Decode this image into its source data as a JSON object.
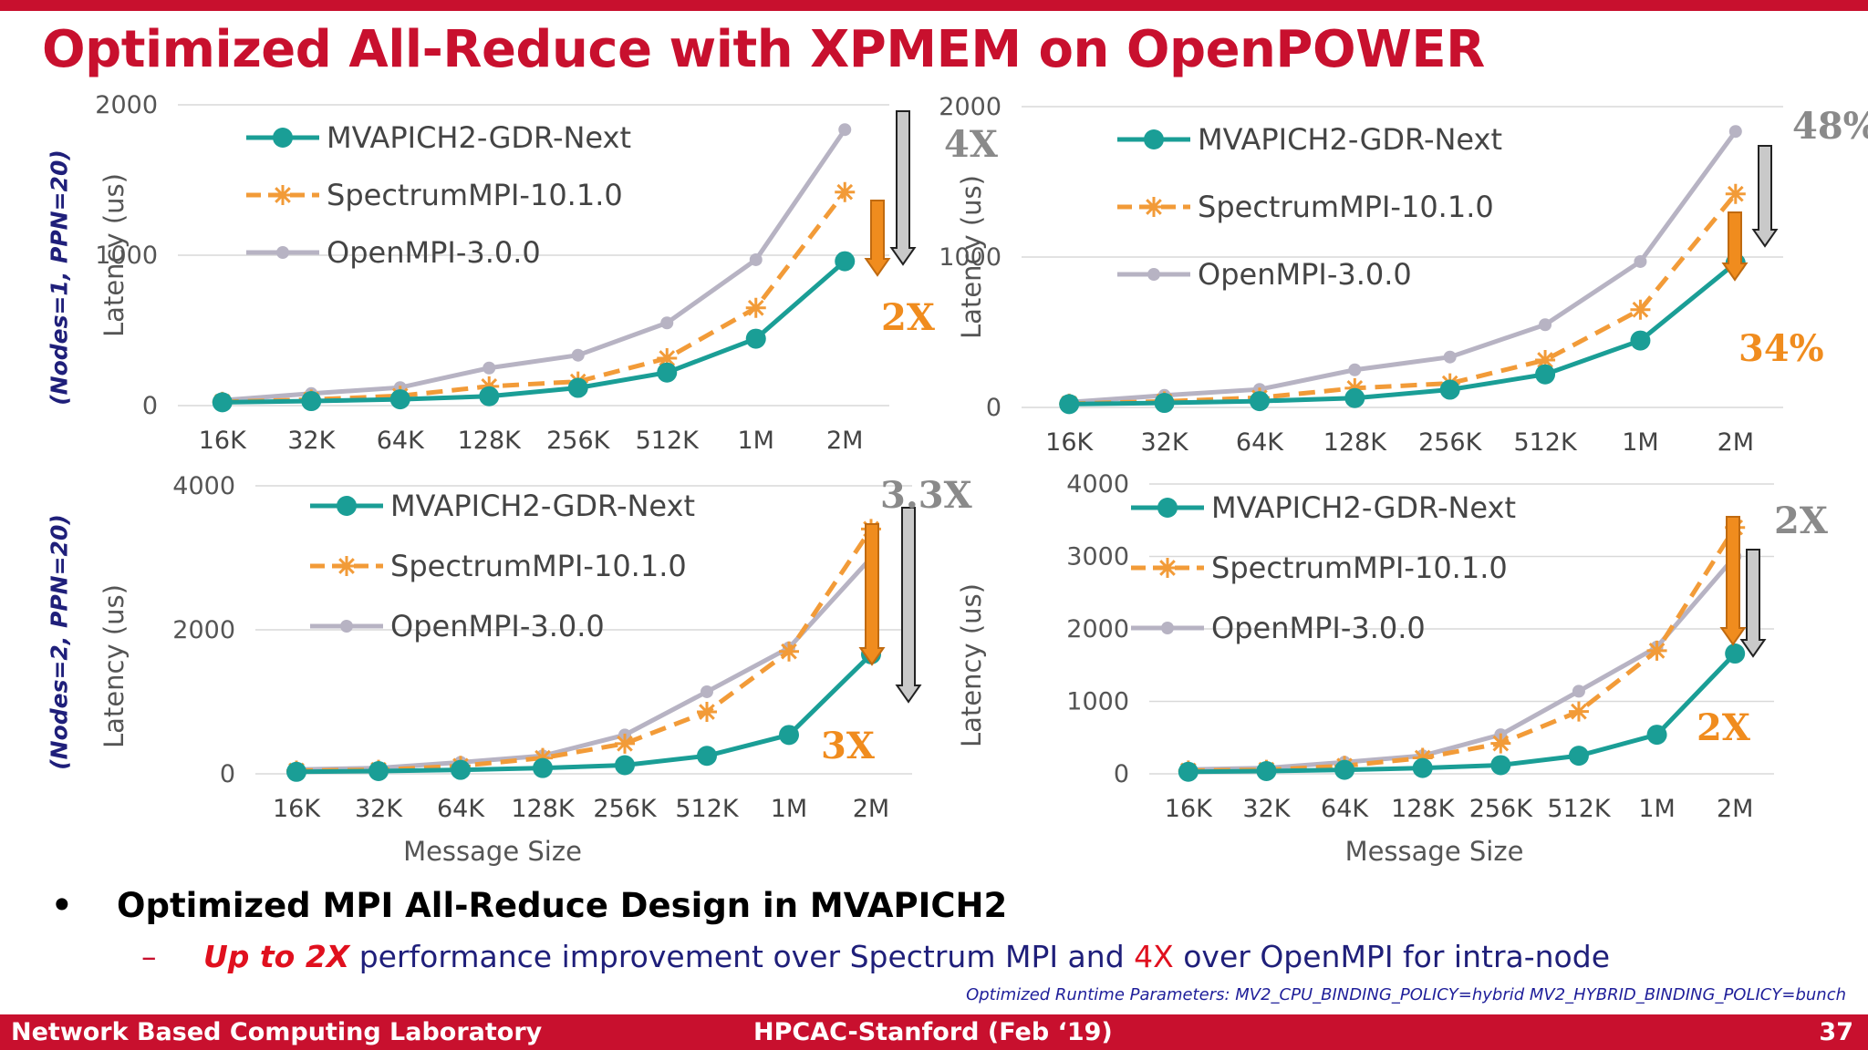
{
  "slide": {
    "title": "Optimized All-Reduce with XPMEM on OpenPOWER",
    "row_labels": [
      "(Nodes=1, PPN=20)",
      "(Nodes=2, PPN=20)"
    ],
    "bullet_main": "Optimized MPI All-Reduce Design in MVAPICH2",
    "bullet_sub_highlight": "Up to 2X",
    "bullet_sub_mid": " performance improvement over Spectrum MPI and ",
    "bullet_sub_highlight2": "4X",
    "bullet_sub_end": " over OpenMPI for intra-node",
    "runtime_params": "Optimized Runtime Parameters: MV2_CPU_BINDING_POLICY=hybrid MV2_HYBRID_BINDING_POLICY=bunch",
    "footer_left": "Network Based Computing Laboratory",
    "footer_center": "HPCAC-Stanford (Feb ‘19)",
    "footer_right": "37"
  },
  "colors": {
    "accent": "#c8102e",
    "mvapich": "#1a9e96",
    "spectrum": "#f29b38",
    "openmpi": "#b7b3c3",
    "annot_orange": "#f08c1e",
    "annot_gray": "#8a8a8a"
  },
  "chart_data": [
    {
      "type": "line",
      "xlabel": "",
      "ylabel": "Latency (us)",
      "ylim": [
        0,
        2000
      ],
      "yticks": [
        0,
        1000,
        2000
      ],
      "categories": [
        "16K",
        "32K",
        "64K",
        "128K",
        "256K",
        "512K",
        "1M",
        "2M"
      ],
      "series": [
        {
          "name": "MVAPICH2-GDR-Next",
          "values": [
            22,
            30,
            42,
            62,
            118,
            220,
            445,
            960
          ]
        },
        {
          "name": "SpectrumMPI-10.1.0",
          "values": [
            25,
            40,
            65,
            128,
            160,
            315,
            650,
            1420
          ]
        },
        {
          "name": "OpenMPI-3.0.0",
          "values": [
            35,
            80,
            120,
            250,
            335,
            550,
            970,
            1835
          ]
        }
      ],
      "legend": "top-left",
      "annotations": {
        "gray": "4X",
        "orange": "2X"
      }
    },
    {
      "type": "line",
      "xlabel": "",
      "ylabel": "Latency (us)",
      "ylim": [
        0,
        2000
      ],
      "yticks": [
        0,
        1000,
        2000
      ],
      "categories": [
        "16K",
        "32K",
        "64K",
        "128K",
        "256K",
        "512K",
        "1M",
        "2M"
      ],
      "series": [
        {
          "name": "MVAPICH2-GDR-Next",
          "values": [
            22,
            30,
            42,
            62,
            118,
            220,
            445,
            960
          ]
        },
        {
          "name": "SpectrumMPI-10.1.0",
          "values": [
            25,
            40,
            65,
            128,
            160,
            315,
            650,
            1420
          ]
        },
        {
          "name": "OpenMPI-3.0.0",
          "values": [
            35,
            80,
            120,
            250,
            335,
            550,
            970,
            1835
          ]
        }
      ],
      "legend": "top-left",
      "annotations": {
        "gray": "48%",
        "orange": "34%"
      }
    },
    {
      "type": "line",
      "xlabel": "Message Size",
      "ylabel": "Latency (us)",
      "ylim": [
        0,
        4000
      ],
      "yticks": [
        0,
        2000,
        4000
      ],
      "categories": [
        "16K",
        "32K",
        "64K",
        "128K",
        "256K",
        "512K",
        "1M",
        "2M"
      ],
      "series": [
        {
          "name": "MVAPICH2-GDR-Next",
          "values": [
            28,
            38,
            55,
            80,
            120,
            250,
            540,
            1660
          ]
        },
        {
          "name": "SpectrumMPI-10.1.0",
          "values": [
            45,
            55,
            110,
            220,
            420,
            860,
            1700,
            3400
          ]
        },
        {
          "name": "OpenMPI-3.0.0",
          "values": [
            60,
            80,
            160,
            250,
            540,
            1140,
            1750,
            3000
          ]
        }
      ],
      "legend": "top-left",
      "annotations": {
        "gray": "3.3X",
        "orange": "3X"
      }
    },
    {
      "type": "line",
      "xlabel": "Message Size",
      "ylabel": "Latency (us)",
      "ylim": [
        0,
        4000
      ],
      "yticks": [
        0,
        1000,
        2000,
        3000,
        4000
      ],
      "categories": [
        "16K",
        "32K",
        "64K",
        "128K",
        "256K",
        "512K",
        "1M",
        "2M"
      ],
      "series": [
        {
          "name": "MVAPICH2-GDR-Next",
          "values": [
            28,
            38,
            55,
            80,
            120,
            250,
            540,
            1660
          ]
        },
        {
          "name": "SpectrumMPI-10.1.0",
          "values": [
            45,
            55,
            110,
            220,
            420,
            860,
            1700,
            3400
          ]
        },
        {
          "name": "OpenMPI-3.0.0",
          "values": [
            60,
            80,
            160,
            250,
            540,
            1140,
            1750,
            3000
          ]
        }
      ],
      "legend": "top-left",
      "annotations": {
        "gray": "2X",
        "orange": "2X"
      }
    }
  ]
}
